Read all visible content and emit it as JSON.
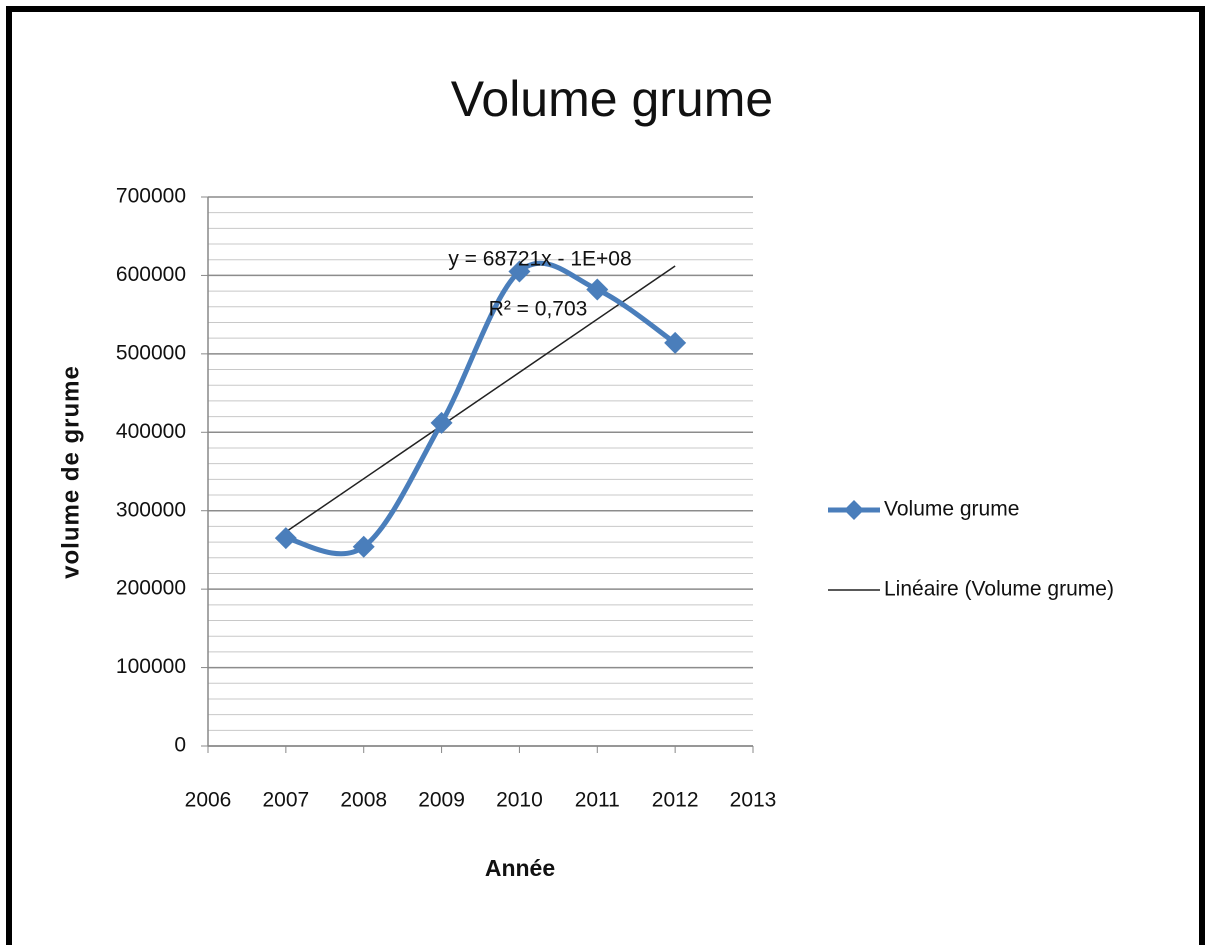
{
  "chart_data": {
    "type": "line",
    "title": "Volume grume",
    "x_label": "Année",
    "y_label": "volume de grume",
    "x": [
      2007,
      2008,
      2009,
      2010,
      2011,
      2012
    ],
    "series": [
      {
        "name": "Volume grume",
        "color": "#4a7ebb",
        "values": [
          265000,
          254000,
          412000,
          605000,
          582000,
          514000
        ]
      }
    ],
    "trendline": {
      "name": "Linéaire (Volume grume)",
      "color": "#222222",
      "x": [
        2007,
        2012
      ],
      "values": [
        273000,
        612000
      ],
      "equation": "y = 68721x - 1E+08",
      "r2": "R² = 0,703"
    },
    "xlim": [
      2006,
      2013
    ],
    "xticks": [
      2006,
      2007,
      2008,
      2009,
      2010,
      2011,
      2012,
      2013
    ],
    "ylim": [
      0,
      700000
    ],
    "yticks": [
      0,
      100000,
      200000,
      300000,
      400000,
      500000,
      600000,
      700000
    ],
    "minor_grid": 20000,
    "grid": true,
    "smooth": true,
    "legend": "right"
  }
}
